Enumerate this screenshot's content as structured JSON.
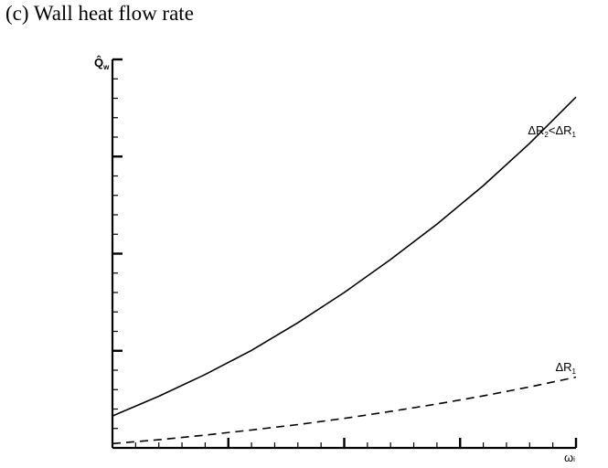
{
  "chart_data": {
    "type": "line",
    "title": "(c) Wall heat flow rate",
    "xlabel": "ω",
    "xlabel_sub": "i",
    "ylabel": "Q̂",
    "ylabel_sub": "w",
    "xlim": [
      0,
      1
    ],
    "ylim": [
      0,
      1
    ],
    "x_major_ticks": 4,
    "x_minor_per_major": 5,
    "y_major_ticks": 4,
    "y_minor_per_major": 5,
    "tick_labels": false,
    "series": [
      {
        "name": "ΔR2<ΔR1",
        "label_main": [
          "ΔR",
          "<ΔR"
        ],
        "label_subs": [
          "2",
          "1"
        ],
        "style": "solid",
        "x": [
          0,
          0.1,
          0.2,
          0.3,
          0.4,
          0.5,
          0.6,
          0.7,
          0.8,
          0.9,
          1.0
        ],
        "y": [
          0.082,
          0.133,
          0.189,
          0.251,
          0.322,
          0.4,
          0.485,
          0.576,
          0.675,
          0.784,
          0.903
        ]
      },
      {
        "name": "ΔR1",
        "label_main": [
          "ΔR"
        ],
        "label_subs": [
          "1"
        ],
        "style": "dashed",
        "x": [
          0,
          0.1,
          0.2,
          0.3,
          0.4,
          0.5,
          0.6,
          0.7,
          0.8,
          0.9,
          1.0
        ],
        "y": [
          0.011,
          0.021,
          0.033,
          0.046,
          0.06,
          0.076,
          0.094,
          0.113,
          0.134,
          0.157,
          0.182
        ]
      }
    ]
  }
}
